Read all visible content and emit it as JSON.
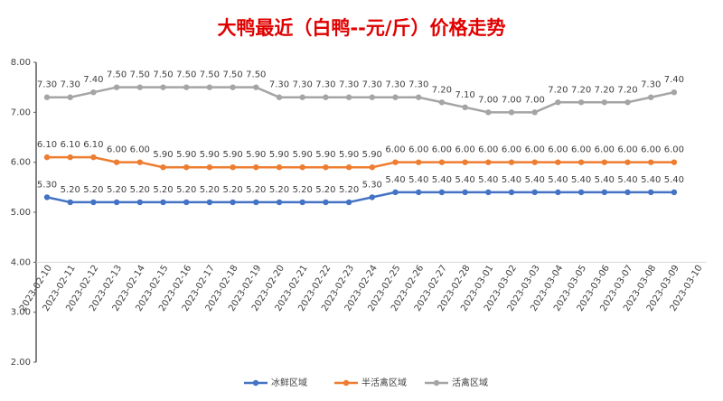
{
  "chart_data": {
    "type": "line",
    "title": "大鸭最近（白鸭--元/斤）价格走势",
    "categories": [
      "2023-02-10",
      "2023-02-11",
      "2023-02-12",
      "2023-02-13",
      "2023-02-14",
      "2023-02-15",
      "2023-02-16",
      "2023-02-17",
      "2023-02-18",
      "2023-02-19",
      "2023-02-20",
      "2023-02-21",
      "2023-02-22",
      "2023-02-23",
      "2023-02-24",
      "2023-02-25",
      "2023-02-26",
      "2023-02-27",
      "2023-02-28",
      "2023-03-01",
      "2023-03-02",
      "2023-03-03",
      "2023-03-04",
      "2023-03-05",
      "2023-03-06",
      "2023-03-07",
      "2023-03-08",
      "2023-03-09",
      "2023-03-10"
    ],
    "series": [
      {
        "name": "冰鲜区域",
        "color": "#4472c4",
        "values": [
          5.3,
          5.2,
          5.2,
          5.2,
          5.2,
          5.2,
          5.2,
          5.2,
          5.2,
          5.2,
          5.2,
          5.2,
          5.2,
          5.2,
          5.3,
          5.4,
          5.4,
          5.4,
          5.4,
          5.4,
          5.4,
          5.4,
          5.4,
          5.4,
          5.4,
          5.4,
          5.4,
          5.4,
          null
        ],
        "value_labels": [
          "5.30",
          "5.20",
          "5.20",
          "5.20",
          "5.20",
          "5.20",
          "5.20",
          "5.20",
          "5.20",
          "5.20",
          "5.20",
          "5.20",
          "5.20",
          "5.20",
          "5.30",
          "5.40",
          "5.40",
          "5.40",
          "5.40",
          "5.40",
          "5.40",
          "5.40",
          "5.40",
          "5.40",
          "5.40",
          "5.40",
          "5.40",
          "5.40",
          null
        ]
      },
      {
        "name": "半活禽区域",
        "color": "#ed7d31",
        "values": [
          6.1,
          6.1,
          6.1,
          6.0,
          6.0,
          5.9,
          5.9,
          5.9,
          5.9,
          5.9,
          5.9,
          5.9,
          5.9,
          5.9,
          5.9,
          6.0,
          6.0,
          6.0,
          6.0,
          6.0,
          6.0,
          6.0,
          6.0,
          6.0,
          6.0,
          6.0,
          6.0,
          6.0,
          null
        ],
        "value_labels": [
          "6.10",
          "6.10",
          "6.10",
          "6.00",
          "6.00",
          "5.90",
          "5.90",
          "5.90",
          "5.90",
          "5.90",
          "5.90",
          "5.90",
          "5.90",
          "5.90",
          "5.90",
          "6.00",
          "6.00",
          "6.00",
          "6.00",
          "6.00",
          "6.00",
          "6.00",
          "6.00",
          "6.00",
          "6.00",
          "6.00",
          "6.00",
          "6.00",
          null
        ]
      },
      {
        "name": "活禽区域",
        "color": "#a5a5a5",
        "values": [
          7.3,
          7.3,
          7.4,
          7.5,
          7.5,
          7.5,
          7.5,
          7.5,
          7.5,
          7.5,
          7.3,
          7.3,
          7.3,
          7.3,
          7.3,
          7.3,
          7.3,
          7.2,
          7.1,
          7.0,
          7.0,
          7.0,
          7.2,
          7.2,
          7.2,
          7.2,
          7.3,
          7.4,
          null
        ],
        "value_labels": [
          "7.30",
          "7.30",
          "7.40",
          "7.50",
          "7.50",
          "7.50",
          "7.50",
          "7.50",
          "7.50",
          "7.50",
          "7.30",
          "7.30",
          "7.30",
          "7.30",
          "7.30",
          "7.30",
          "7.30",
          "7.20",
          "7.10",
          "7.00",
          "7.00",
          "7.00",
          "7.20",
          "7.20",
          "7.20",
          "7.20",
          "7.30",
          "7.40",
          null
        ]
      }
    ],
    "ylim": [
      2,
      8
    ],
    "yticks": [
      {
        "value": 2,
        "label": "2.00"
      },
      {
        "value": 3,
        "label": "3.00"
      },
      {
        "value": 4,
        "label": "4.00"
      },
      {
        "value": 5,
        "label": "5.00"
      },
      {
        "value": 6,
        "label": "6.00"
      },
      {
        "value": 7,
        "label": "7.00"
      },
      {
        "value": 8,
        "label": "8.00"
      }
    ],
    "xaxis_crosses": 4,
    "legend": "bottom"
  }
}
